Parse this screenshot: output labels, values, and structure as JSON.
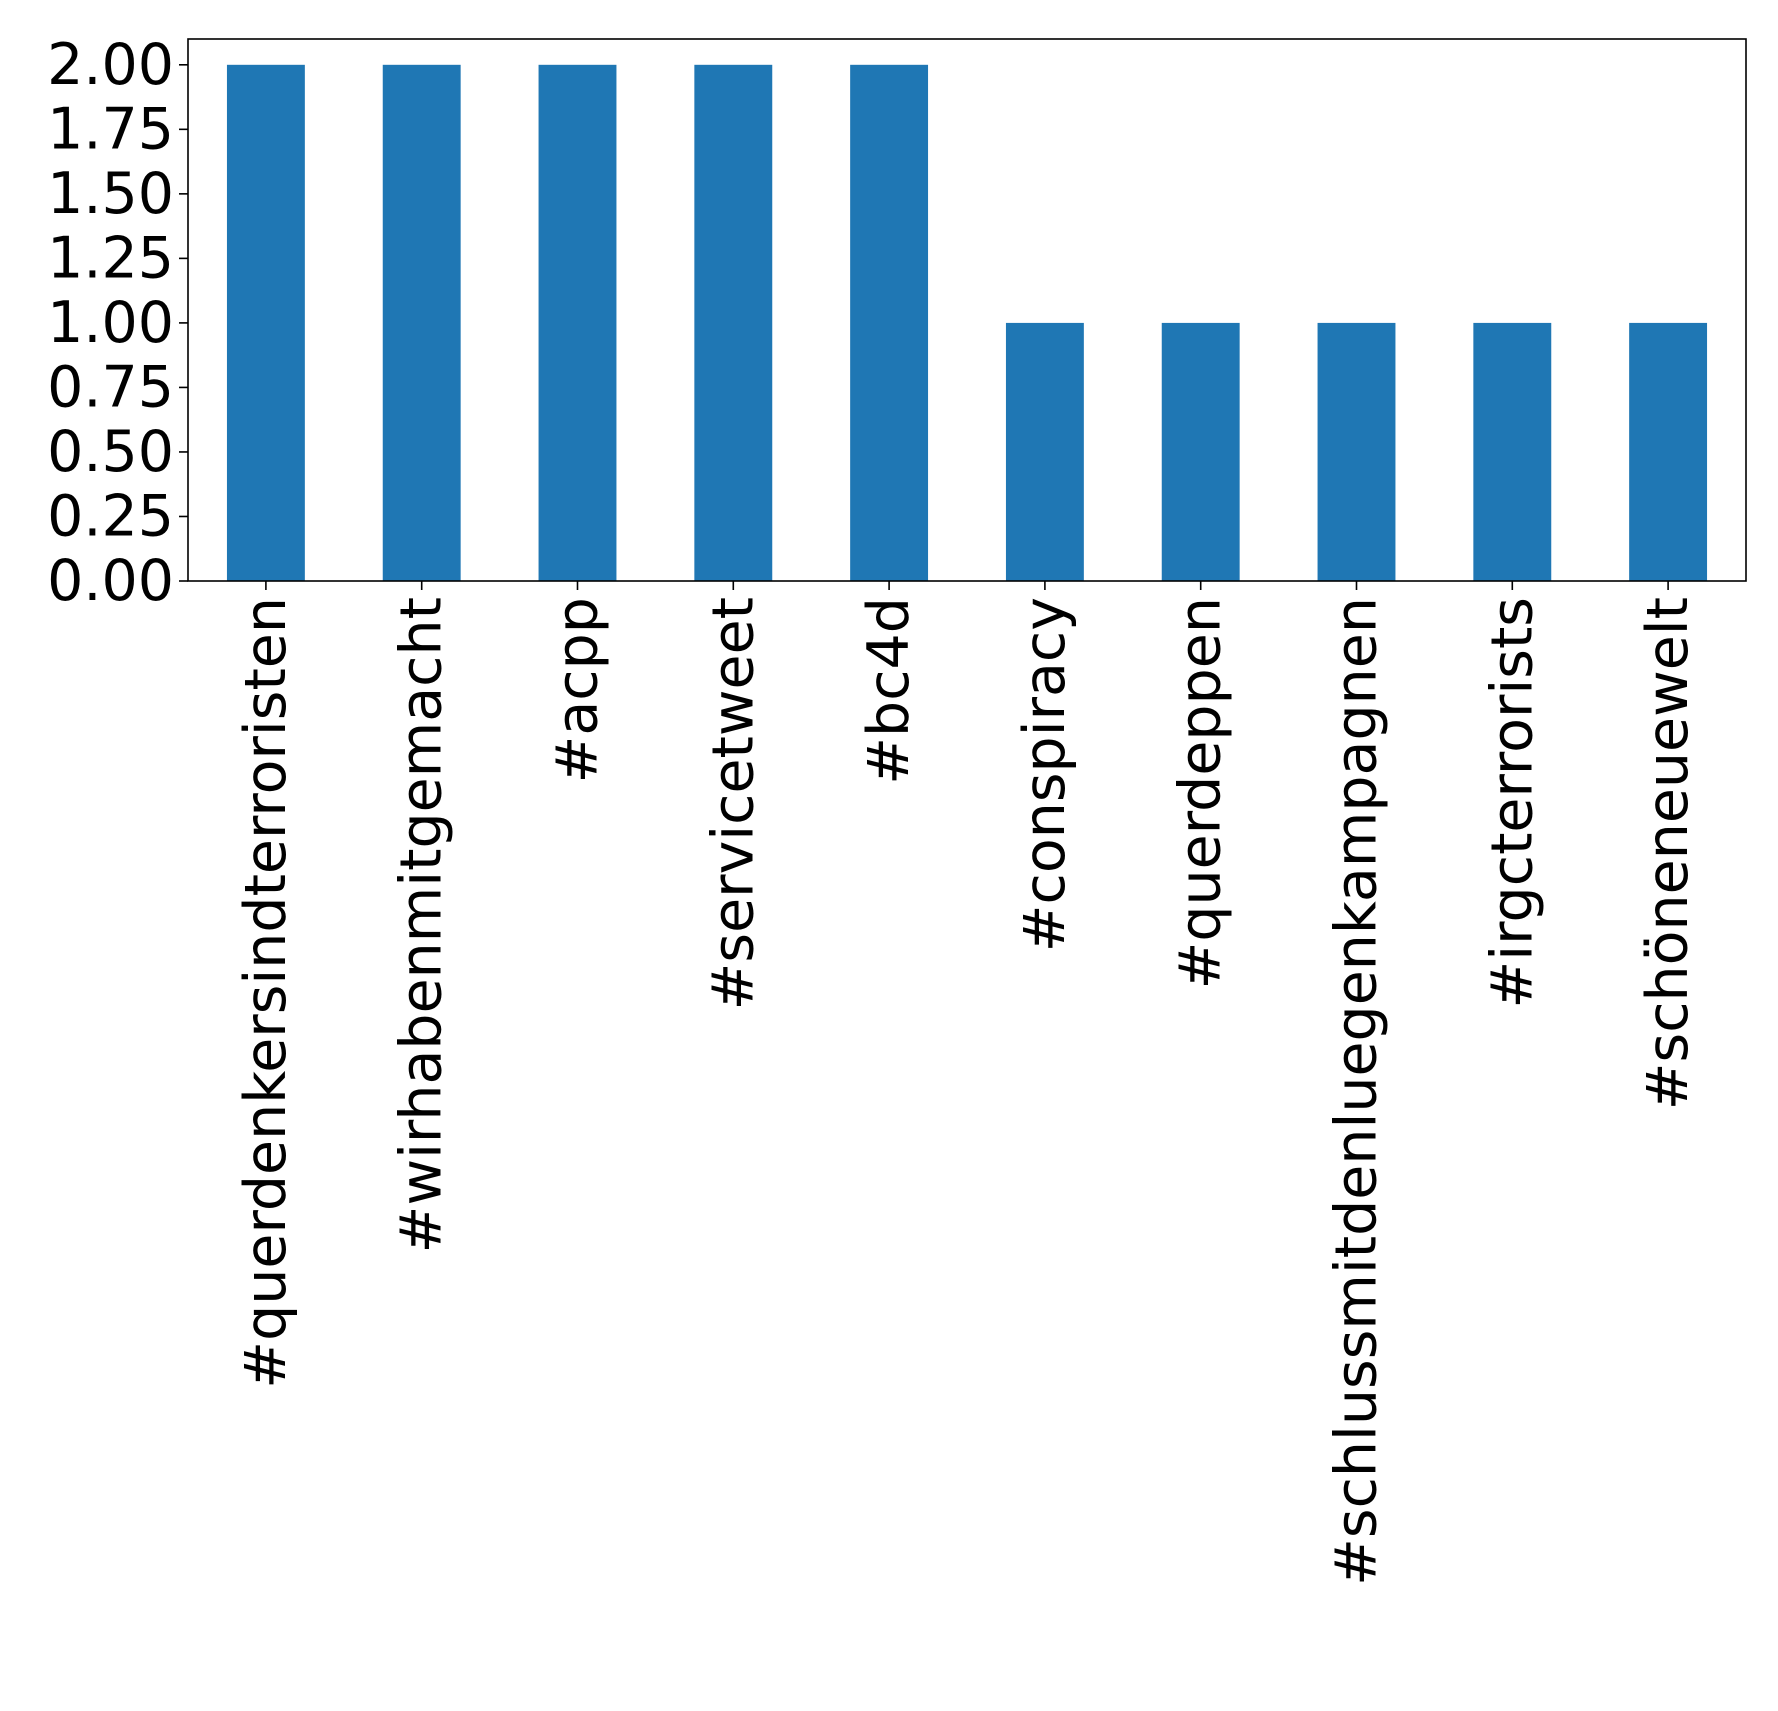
{
  "chart_data": {
    "type": "bar",
    "categories": [
      "#querdenkersindterroristen",
      "#wirhabenmitgemacht",
      "#acpp",
      "#servicetweet",
      "#bc4d",
      "#conspiracy",
      "#querdeppen",
      "#schlussmitdenluegenkampagnen",
      "#irgcterrorists",
      "#schöneneuewelt"
    ],
    "values": [
      2,
      2,
      2,
      2,
      2,
      1,
      1,
      1,
      1,
      1
    ],
    "y_ticks": [
      "0.00",
      "0.25",
      "0.50",
      "0.75",
      "1.00",
      "1.25",
      "1.50",
      "1.75",
      "2.00"
    ],
    "title": "",
    "xlabel": "",
    "ylabel": "",
    "ylim": [
      0,
      2.1
    ],
    "grid": false,
    "bar_color": "#1f77b4"
  }
}
